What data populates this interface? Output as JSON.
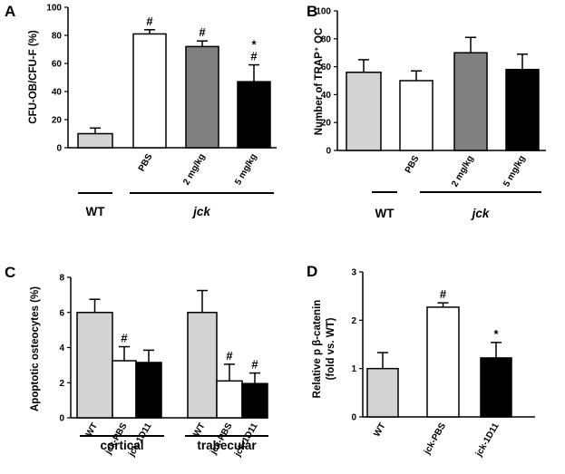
{
  "chart_data": [
    {
      "panel": "A",
      "type": "bar",
      "ylabel": "CFU-OB/CFU-F (%)",
      "ylim": [
        0,
        100
      ],
      "yticks": [
        0,
        20,
        40,
        60,
        80,
        100
      ],
      "categories": [
        "",
        "PBS",
        "2 mg/kg",
        "5 mg/kg"
      ],
      "values": [
        10,
        81,
        72,
        47
      ],
      "errors": [
        4,
        3,
        4,
        12
      ],
      "colors": [
        "#d3d3d3",
        "#ffffff",
        "#808080",
        "#000000"
      ],
      "significance": [
        "",
        "#",
        "#",
        "*\n#"
      ],
      "groups": [
        {
          "label": "WT",
          "italic": false,
          "from": 0,
          "to": 0
        },
        {
          "label": "jck",
          "italic": true,
          "from": 1,
          "to": 3
        }
      ]
    },
    {
      "panel": "B",
      "type": "bar",
      "ylabel": "Number of TRAP⁺ OC",
      "ylim": [
        0,
        100
      ],
      "yticks": [
        0,
        20,
        40,
        60,
        80,
        100
      ],
      "categories": [
        "",
        "PBS",
        "2 mg/kg",
        "5 mg/kg"
      ],
      "values": [
        56,
        50,
        70,
        58
      ],
      "errors": [
        9,
        7,
        11,
        11
      ],
      "colors": [
        "#d3d3d3",
        "#ffffff",
        "#808080",
        "#000000"
      ],
      "significance": [
        "",
        "",
        "",
        ""
      ],
      "groups": [
        {
          "label": "WT",
          "italic": false,
          "from": 0,
          "to": 0
        },
        {
          "label": "jck",
          "italic": true,
          "from": 1,
          "to": 3
        }
      ]
    },
    {
      "panel": "C",
      "type": "bar",
      "ylabel": "Apoptotic osteocytes (%)",
      "ylim": [
        0,
        8
      ],
      "yticks": [
        0,
        2,
        4,
        6,
        8
      ],
      "categories": [
        "WT",
        "jck-PBS",
        "jck-1D11",
        "WT",
        "jck-PBS",
        "jck-1D11"
      ],
      "values": [
        6.0,
        3.25,
        3.15,
        6.0,
        2.1,
        1.95
      ],
      "errors": [
        0.75,
        0.8,
        0.7,
        1.25,
        0.95,
        0.6
      ],
      "colors": [
        "#d3d3d3",
        "#ffffff",
        "#000000",
        "#d3d3d3",
        "#ffffff",
        "#000000"
      ],
      "significance": [
        "",
        "#",
        "",
        "",
        "#",
        "#"
      ],
      "groups": [
        {
          "label": "cortical",
          "italic": false,
          "from": 0,
          "to": 2
        },
        {
          "label": "trabecular",
          "italic": false,
          "from": 3,
          "to": 5
        }
      ]
    },
    {
      "panel": "D",
      "type": "bar",
      "ylabel": "Relative p β-catenin",
      "ylabel2": "(fold vs. WT)",
      "ylim": [
        0,
        3
      ],
      "yticks": [
        0,
        1,
        2,
        3
      ],
      "categories": [
        "WT",
        "jck-PBS",
        "jck-1D11"
      ],
      "values": [
        1.0,
        2.27,
        1.22
      ],
      "errors": [
        0.33,
        0.09,
        0.32
      ],
      "colors": [
        "#d3d3d3",
        "#ffffff",
        "#000000"
      ],
      "significance": [
        "",
        "#",
        "*"
      ],
      "groups": []
    }
  ]
}
